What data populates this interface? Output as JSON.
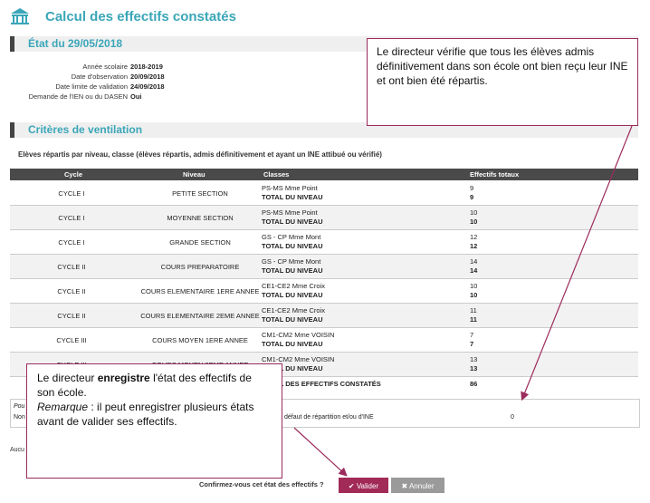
{
  "header": {
    "title": "Calcul des effectifs constatés"
  },
  "etat": {
    "title": "État du 29/05/2018",
    "fields": [
      {
        "label": "Année scolaire",
        "value": "2018-2019"
      },
      {
        "label": "Date d'observation",
        "value": "20/09/2018"
      },
      {
        "label": "Date limite de validation",
        "value": "24/09/2018"
      },
      {
        "label": "Demande de l'IEN ou du DASEN",
        "value": "Oui"
      }
    ]
  },
  "criteres": {
    "title": "Critères de ventilation",
    "subheading": "Elèves répartis par niveau, classe (élèves répartis, admis définitivement et ayant un INE attibué ou vérifié)",
    "columns": {
      "cycle": "Cycle",
      "niveau": "Niveau",
      "classes": "Classes",
      "effectifs": "Effectifs totaux"
    },
    "total_label": "TOTAL DU NIVEAU",
    "rows": [
      {
        "cycle": "CYCLE I",
        "niveau": "PETITE SECTION",
        "classe": "PS-MS Mme Point",
        "count": "9",
        "total": "9"
      },
      {
        "cycle": "CYCLE I",
        "niveau": "MOYENNE SECTION",
        "classe": "PS-MS Mme Point",
        "count": "10",
        "total": "10"
      },
      {
        "cycle": "CYCLE I",
        "niveau": "GRANDE SECTION",
        "classe": "GS - CP Mme Mont",
        "count": "12",
        "total": "12"
      },
      {
        "cycle": "CYCLE II",
        "niveau": "COURS PREPARATOIRE",
        "classe": "GS - CP Mme Mont",
        "count": "14",
        "total": "14"
      },
      {
        "cycle": "CYCLE II",
        "niveau": "COURS ELEMENTAIRE 1ERE ANNEE",
        "classe": "CE1-CE2 Mme Croix",
        "count": "10",
        "total": "10"
      },
      {
        "cycle": "CYCLE II",
        "niveau": "COURS ELEMENTAIRE 2EME ANNEE",
        "classe": "CE1-CE2 Mme Croix",
        "count": "11",
        "total": "11"
      },
      {
        "cycle": "CYCLE III",
        "niveau": "COURS MOYEN 1ERE ANNEE",
        "classe": "CM1-CM2 Mme VOISIN",
        "count": "7",
        "total": "7"
      },
      {
        "cycle": "CYCLE III",
        "niveau": "COURS MOYEN 2EME ANNEE",
        "classe": "CM1-CM2 Mme VOISIN",
        "count": "13",
        "total": "13"
      }
    ],
    "final": {
      "label": "TOTAL DES EFFECTIFS CONSTATÉS",
      "value": "86"
    }
  },
  "lower": {
    "frag1": "Pou",
    "frag2": "Non",
    "frag3": "défaut de répartition et/ou d'INE",
    "value": "0",
    "frag4": "Aucu"
  },
  "footer": {
    "confirm_text": "Confirmez-vous cet état des effectifs ?",
    "validate_label": "Valider",
    "cancel_label": "Annuler"
  },
  "callout1": {
    "text": "Le directeur vérifie que tous les élèves admis définitivement dans son école ont bien reçu leur INE et ont bien été répartis."
  },
  "callout2": {
    "line1_prefix": "Le directeur ",
    "line1_bold": "enregistre",
    "line1_suffix": " l'état des effectifs de son école.",
    "remark_label": "Remarque",
    "remark_text": " : il peut enregistrer plusieurs états avant de valider ses effectifs."
  },
  "colors": {
    "accent": "#3aa6b8",
    "validate": "#a22a57",
    "cancel": "#9a9a9a",
    "arrow": "#9b2c5c"
  }
}
